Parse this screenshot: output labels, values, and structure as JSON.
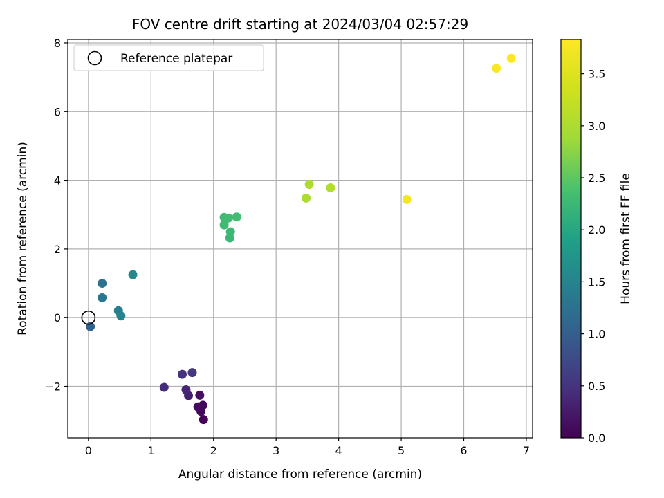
{
  "chart_data": {
    "type": "scatter",
    "title": "FOV centre drift starting at 2024/03/04 02:57:29",
    "xlabel": "Angular distance from reference (arcmin)",
    "ylabel": "Rotation from reference (arcmin)",
    "xlim": [
      -0.33,
      7.1
    ],
    "ylim": [
      -3.5,
      8.1
    ],
    "xticks": [
      0,
      1,
      2,
      3,
      4,
      5,
      6,
      7
    ],
    "yticks": [
      -2,
      0,
      2,
      4,
      6,
      8
    ],
    "grid": true,
    "legend": {
      "placement": "top-left",
      "entries": [
        "Reference platepar"
      ]
    },
    "reference_point": {
      "x": 0,
      "y": 0
    },
    "colorbar": {
      "label": "Hours from first FF file",
      "range": [
        0.0,
        3.83
      ],
      "ticks": [
        "0.0",
        "0.5",
        "1.0",
        "1.5",
        "2.0",
        "2.5",
        "3.0",
        "3.5"
      ],
      "colormap": "viridis"
    },
    "points": [
      {
        "x": 1.84,
        "y": -2.97,
        "c": 0.02
      },
      {
        "x": 1.83,
        "y": -2.55,
        "c": 0.05
      },
      {
        "x": 1.8,
        "y": -2.73,
        "c": 0.07
      },
      {
        "x": 1.75,
        "y": -2.6,
        "c": 0.1
      },
      {
        "x": 1.78,
        "y": -2.26,
        "c": 0.13
      },
      {
        "x": 1.6,
        "y": -2.27,
        "c": 0.3
      },
      {
        "x": 1.56,
        "y": -2.1,
        "c": 0.36
      },
      {
        "x": 1.21,
        "y": -2.03,
        "c": 0.42
      },
      {
        "x": 1.5,
        "y": -1.65,
        "c": 0.48
      },
      {
        "x": 1.66,
        "y": -1.6,
        "c": 0.55
      },
      {
        "x": 0.03,
        "y": -0.26,
        "c": 1.05
      },
      {
        "x": 0.22,
        "y": 1.0,
        "c": 1.25
      },
      {
        "x": 0.22,
        "y": 0.58,
        "c": 1.32
      },
      {
        "x": 0.48,
        "y": 0.2,
        "c": 1.42
      },
      {
        "x": 0.52,
        "y": 0.05,
        "c": 1.5
      },
      {
        "x": 0.71,
        "y": 1.25,
        "c": 1.58
      },
      {
        "x": 2.17,
        "y": 2.92,
        "c": 2.28
      },
      {
        "x": 2.24,
        "y": 2.9,
        "c": 2.3
      },
      {
        "x": 2.37,
        "y": 2.93,
        "c": 2.32
      },
      {
        "x": 2.17,
        "y": 2.7,
        "c": 2.27
      },
      {
        "x": 2.27,
        "y": 2.5,
        "c": 2.26
      },
      {
        "x": 2.26,
        "y": 2.32,
        "c": 2.25
      },
      {
        "x": 3.53,
        "y": 3.88,
        "c": 3.02
      },
      {
        "x": 3.87,
        "y": 3.78,
        "c": 3.05
      },
      {
        "x": 3.48,
        "y": 3.48,
        "c": 3.0
      },
      {
        "x": 5.09,
        "y": 3.44,
        "c": 3.75
      },
      {
        "x": 6.52,
        "y": 7.26,
        "c": 3.8
      },
      {
        "x": 6.76,
        "y": 7.55,
        "c": 3.83
      }
    ]
  }
}
